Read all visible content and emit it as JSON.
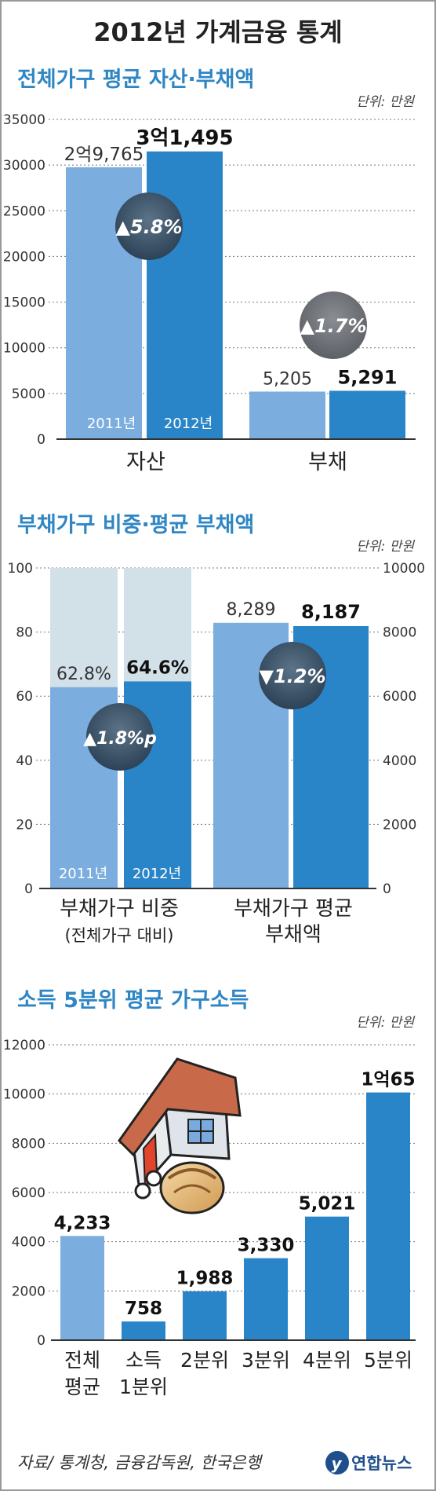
{
  "title": "2012년 가계금융 통계",
  "source": "자료/ 통계청, 금융감독원, 한국은행",
  "logo": "연합뉴스",
  "colors": {
    "light": "#7badde",
    "dark": "#2a85c8",
    "header": "#2f86c4",
    "pale": "#d2e0e8"
  },
  "chart_data": [
    {
      "type": "bar",
      "title": "전체가구 평균 자산·부채액",
      "unit": "단위: 만원",
      "categories": [
        "자산",
        "부채"
      ],
      "series": [
        {
          "name": "2011년",
          "values": [
            29765,
            5205
          ],
          "labels": [
            "2억9,765",
            "5,205"
          ]
        },
        {
          "name": "2012년",
          "values": [
            31495,
            5291
          ],
          "labels": [
            "3억1,495",
            "5,291"
          ]
        }
      ],
      "yticks": [
        "0",
        "5000",
        "10000",
        "15000",
        "20000",
        "25000",
        "30000",
        "35000"
      ],
      "ylim": [
        0,
        35000
      ],
      "badges": [
        "▲5.8%",
        "▲1.7%"
      ]
    },
    {
      "type": "bar",
      "title": "부채가구 비중·평균 부채액",
      "unit": "단위: 만원",
      "categories": [
        "부채가구 비중",
        "부채가구 평균"
      ],
      "category_sub": [
        "(전체가구 대비)",
        "부채액"
      ],
      "series": [
        {
          "name": "2011년",
          "values": [
            62.8,
            8289
          ],
          "labels": [
            "62.8%",
            "8,289"
          ]
        },
        {
          "name": "2012년",
          "values": [
            64.6,
            8187
          ],
          "labels": [
            "64.6%",
            "8,187"
          ]
        }
      ],
      "yticks_left": [
        "0",
        "20",
        "40",
        "60",
        "80",
        "100"
      ],
      "ylim_left": [
        0,
        100
      ],
      "yticks_right": [
        "0",
        "2000",
        "4000",
        "6000",
        "8000",
        "10000"
      ],
      "ylim_right": [
        0,
        10000
      ],
      "badges": [
        "▲1.8%p",
        "▼1.2%"
      ]
    },
    {
      "type": "bar",
      "title": "소득 5분위 평균 가구소득",
      "unit": "단위: 만원",
      "categories": [
        {
          "line1": "전체",
          "line2": "평균"
        },
        {
          "line1": "소득",
          "line2": "1분위"
        },
        {
          "line1": "2분위",
          "line2": ""
        },
        {
          "line1": "3분위",
          "line2": ""
        },
        {
          "line1": "4분위",
          "line2": ""
        },
        {
          "line1": "5분위",
          "line2": ""
        }
      ],
      "values": [
        4233,
        758,
        1988,
        3330,
        5021,
        10065
      ],
      "labels": [
        "4,233",
        "758",
        "1,988",
        "3,330",
        "5,021",
        "1억65"
      ],
      "yticks": [
        "0",
        "2000",
        "4000",
        "6000",
        "8000",
        "10000",
        "12000"
      ],
      "ylim": [
        0,
        12000
      ]
    }
  ]
}
